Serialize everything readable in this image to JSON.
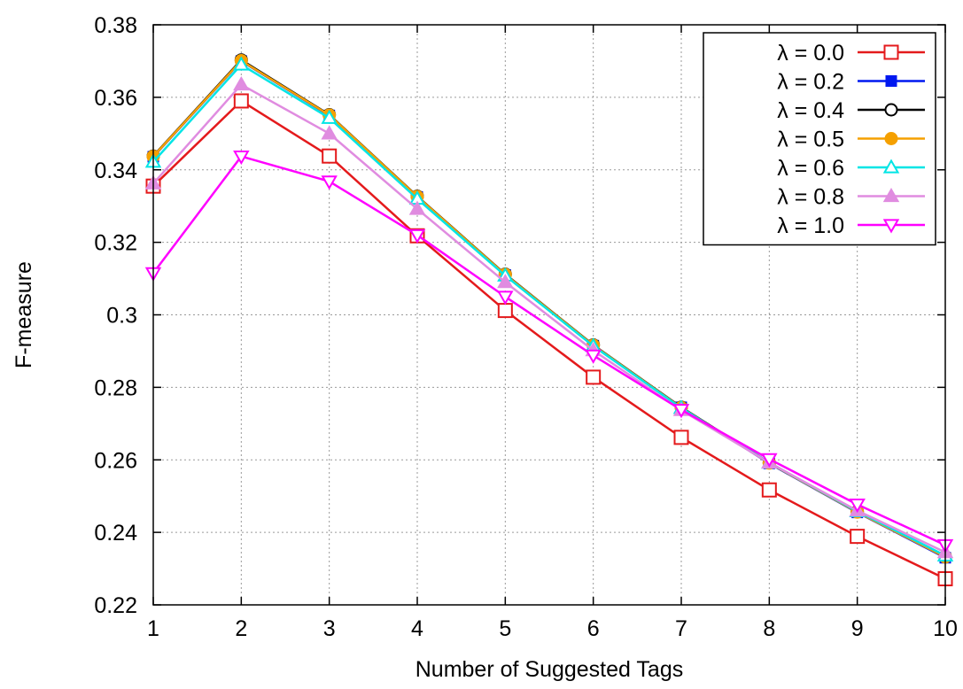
{
  "chart_data": {
    "type": "line",
    "title": "",
    "xlabel": "Number of Suggested Tags",
    "ylabel": "F-measure",
    "x": [
      1,
      2,
      3,
      4,
      5,
      6,
      7,
      8,
      9,
      10
    ],
    "xlim": [
      1,
      10
    ],
    "ylim": [
      0.22,
      0.38
    ],
    "x_ticks": [
      "1",
      "2",
      "3",
      "4",
      "5",
      "6",
      "7",
      "8",
      "9",
      "10"
    ],
    "y_ticks": [
      {
        "v": 0.22,
        "label": "0.22"
      },
      {
        "v": 0.24,
        "label": "0.24"
      },
      {
        "v": 0.26,
        "label": "0.26"
      },
      {
        "v": 0.28,
        "label": "0.28"
      },
      {
        "v": 0.3,
        "label": "0.3"
      },
      {
        "v": 0.32,
        "label": "0.32"
      },
      {
        "v": 0.34,
        "label": "0.34"
      },
      {
        "v": 0.36,
        "label": "0.36"
      },
      {
        "v": 0.38,
        "label": "0.38"
      }
    ],
    "grid": true,
    "legend_position": "top-right",
    "series": [
      {
        "name": "λ = 0.0",
        "color": "#e41a1c",
        "marker": "square-open",
        "values": [
          0.3355,
          0.359,
          0.3438,
          0.3218,
          0.3012,
          0.2828,
          0.2662,
          0.2517,
          0.2389,
          0.2272
        ]
      },
      {
        "name": "λ = 0.2",
        "color": "#0018f0",
        "marker": "square-filled",
        "values": [
          0.3436,
          0.37,
          0.355,
          0.3325,
          0.311,
          0.2915,
          0.2745,
          0.259,
          0.2455,
          0.233
        ]
      },
      {
        "name": "λ = 0.4",
        "color": "#000000",
        "marker": "circle-open",
        "values": [
          0.3438,
          0.3703,
          0.3552,
          0.3327,
          0.3112,
          0.2917,
          0.2745,
          0.2592,
          0.2457,
          0.2333
        ]
      },
      {
        "name": "λ = 0.5",
        "color": "#f5a000",
        "marker": "circle-filled",
        "values": [
          0.3437,
          0.3701,
          0.3551,
          0.3326,
          0.3111,
          0.2916,
          0.2744,
          0.2591,
          0.2456,
          0.2332
        ]
      },
      {
        "name": "λ = 0.6",
        "color": "#00e5e5",
        "marker": "triangle-up-open",
        "values": [
          0.3422,
          0.369,
          0.3543,
          0.332,
          0.3108,
          0.2914,
          0.2743,
          0.2592,
          0.2458,
          0.2336
        ]
      },
      {
        "name": "λ = 0.8",
        "color": "#e08ce0",
        "marker": "triangle-up-filled",
        "values": [
          0.3362,
          0.3635,
          0.35,
          0.3292,
          0.309,
          0.2902,
          0.2737,
          0.2592,
          0.246,
          0.2345
        ]
      },
      {
        "name": "λ = 1.0",
        "color": "#ff00ff",
        "marker": "triangle-down-open",
        "values": [
          0.3115,
          0.3437,
          0.3368,
          0.322,
          0.305,
          0.2888,
          0.2738,
          0.2602,
          0.2477,
          0.2365
        ]
      }
    ]
  }
}
